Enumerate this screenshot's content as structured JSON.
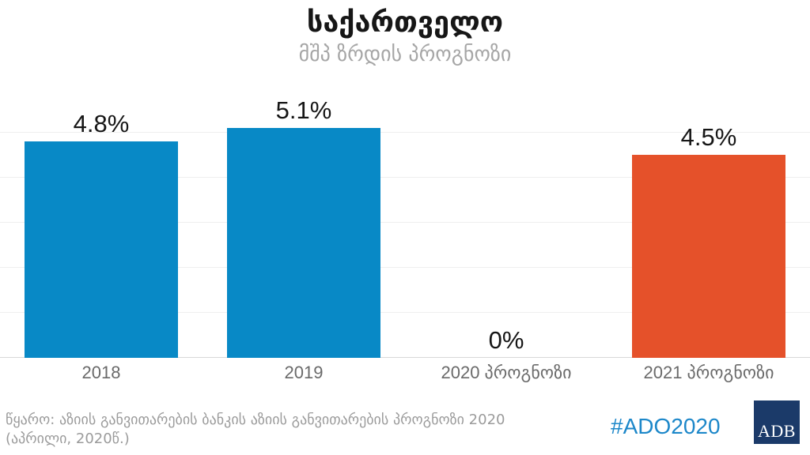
{
  "chart_data": {
    "type": "bar",
    "title": "საქართველო",
    "subtitle": "მშპ ზრდის პროგნოზი",
    "categories": [
      "2018",
      "2019",
      "2020 პროგნოზი",
      "2021 პროგნოზი"
    ],
    "values": [
      4.8,
      5.1,
      0,
      4.5
    ],
    "value_labels": [
      "4.8%",
      "5.1%",
      "0%",
      "4.5%"
    ],
    "bar_colors": [
      "#0889c6",
      "#0889c6",
      "#0889c6",
      "#e5512a"
    ],
    "xlabel": "",
    "ylabel": "",
    "ylim": [
      0,
      6
    ],
    "gridline_step": 1,
    "grid": "horizontal",
    "legend": "none"
  },
  "footer": {
    "source_line1": "წყარო: აზიის განვითარების ბანკის აზიის განვითარების პროგნოზი 2020",
    "source_line2": "(აპრილი, 2020წ.)",
    "hashtag": "#ADO2020",
    "logo_text": "ADB"
  },
  "colors": {
    "bar_blue": "#0889c6",
    "bar_orange": "#e5512a",
    "hashtag_blue": "#1c87c9",
    "logo_navy": "#1b3a69",
    "title_black": "#161616",
    "subtitle_gray": "#a6a6a6",
    "axis_label_gray": "#6a6a6a",
    "source_gray": "#9b9b9b",
    "gridline_gray": "#efefef",
    "axis_line_gray": "#d8d8d8"
  }
}
